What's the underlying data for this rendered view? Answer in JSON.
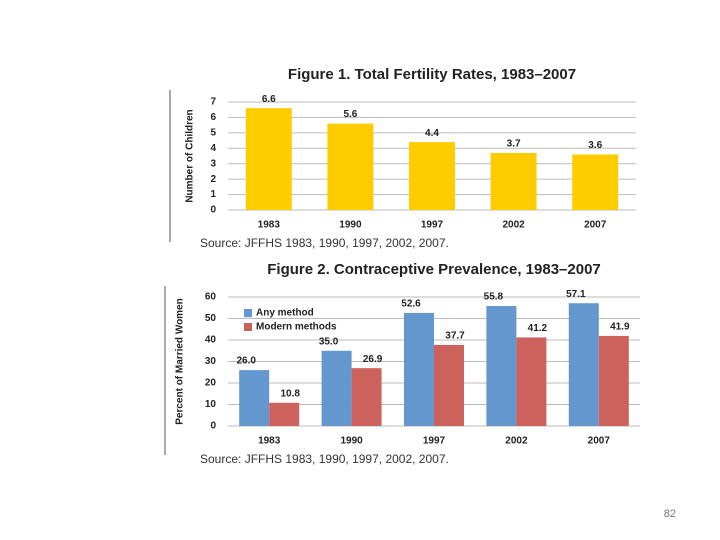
{
  "chart_data": [
    {
      "type": "bar",
      "title": "Figure 1. Total Fertility Rates, 1983–2007",
      "y_label": "Number of Children",
      "categories": [
        "1983",
        "1990",
        "1997",
        "2002",
        "2007"
      ],
      "values": [
        6.6,
        5.6,
        4.4,
        3.7,
        3.6
      ],
      "color": "#ffcc00",
      "ylim": [
        0,
        7
      ],
      "yticks": [
        0,
        1,
        2,
        3,
        4,
        5,
        6,
        7
      ],
      "grid": true,
      "source": "Source: JFFHS 1983, 1990, 1997, 2002, 2007."
    },
    {
      "type": "bar",
      "title": "Figure 2. Contraceptive Prevalence, 1983–2007",
      "y_label": "Percent of Married Women",
      "categories": [
        "1983",
        "1990",
        "1997",
        "2002",
        "2007"
      ],
      "series": [
        {
          "name": "Any method",
          "color": "#6397cd",
          "values": [
            26.0,
            35.0,
            52.6,
            55.8,
            57.1
          ],
          "value_labels": [
            "26.0",
            "35.0",
            "52.6",
            "55.8",
            "57.1"
          ]
        },
        {
          "name": "Modern methods",
          "color": "#cd625d",
          "values": [
            10.8,
            26.9,
            37.7,
            41.2,
            41.9
          ],
          "value_labels": [
            "10.8",
            "26.9",
            "37.7",
            "41.2",
            "41.9"
          ]
        }
      ],
      "ylim": [
        0,
        60
      ],
      "yticks": [
        0,
        10,
        20,
        30,
        40,
        50,
        60
      ],
      "grid": true,
      "legend": "upper left",
      "source": "Source: JFFHS 1983, 1990, 1997, 2002, 2007."
    }
  ],
  "page_number": "82"
}
